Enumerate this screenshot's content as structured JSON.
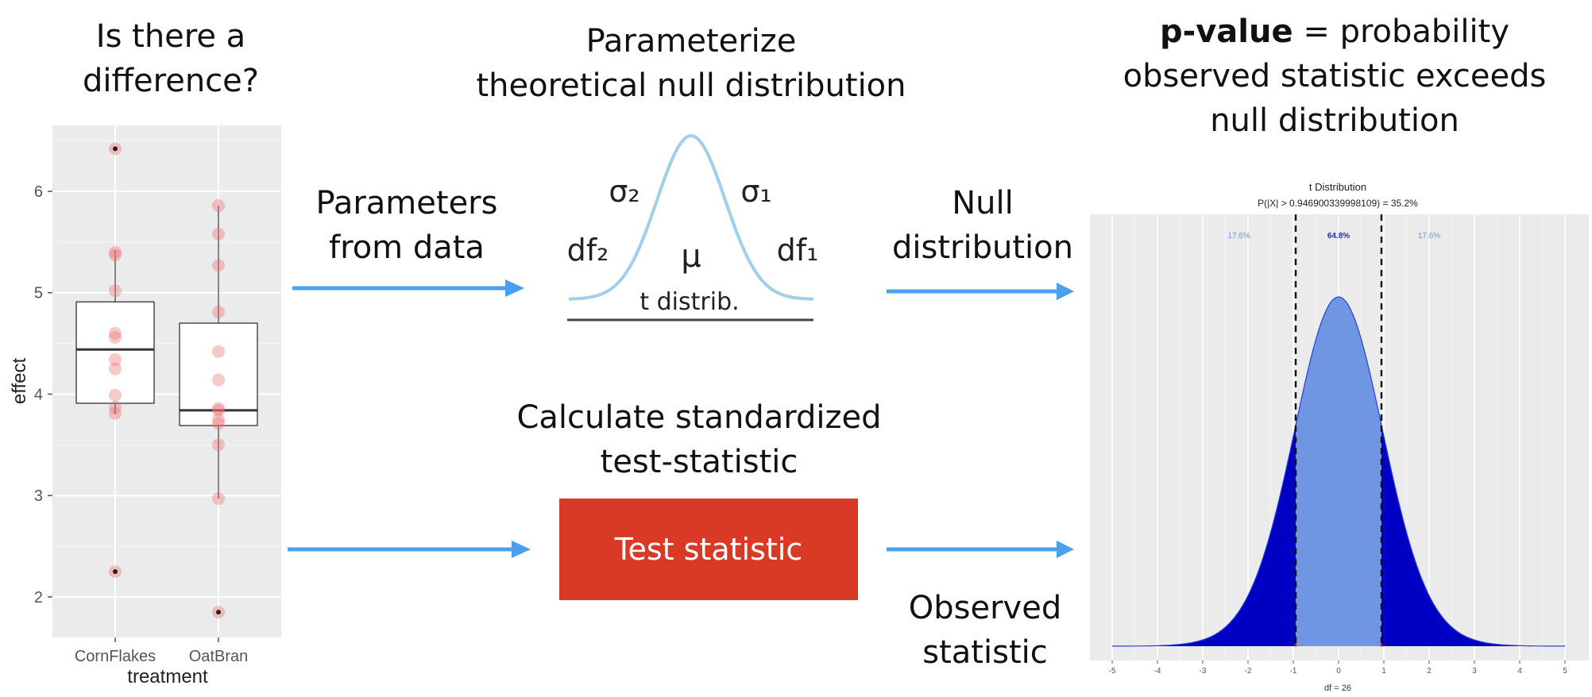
{
  "headings": {
    "left": [
      "Is there a",
      "difference?"
    ],
    "middle": [
      "Parameterize",
      "theoretical null distribution"
    ],
    "right_bold": "p-value",
    "right_rest": " = probability",
    "right_lines": [
      "observed statistic exceeds",
      "null distribution"
    ],
    "calc": [
      "Calculate standardized",
      "test-statistic"
    ]
  },
  "labels": {
    "params": [
      "Parameters",
      "from data"
    ],
    "null": [
      "Null",
      "distribution"
    ],
    "observed": [
      "Observed",
      "statistic"
    ],
    "test_statistic": "Test statistic"
  },
  "tdist_icon": {
    "sigma2": "σ₂",
    "sigma1": "σ₁",
    "df2": "df₂",
    "df1": "df₁",
    "mu": "μ",
    "caption": "t distrib."
  },
  "colors": {
    "arrow": "#4aa0ec",
    "test_box": "#d83a26",
    "icon_curve": "#9fcfea",
    "dist_center": "#6f95e3",
    "dist_tails": "#0000c4"
  },
  "chart_data": [
    {
      "type": "scatter",
      "subtype": "boxplot_with_points",
      "xlabel": "treatment",
      "ylabel": "effect",
      "categories": [
        "CornFlakes",
        "OatBran"
      ],
      "ylim": [
        1.6,
        6.65
      ],
      "yticks": [
        "2",
        "3",
        "4",
        "5",
        "6"
      ],
      "boxes": [
        {
          "name": "CornFlakes",
          "min": 3.8,
          "q1": 3.91,
          "median": 4.44,
          "q3": 4.91,
          "max": 5.42
        },
        {
          "name": "OatBran",
          "min": 2.97,
          "q1": 3.69,
          "median": 3.84,
          "q3": 4.7,
          "max": 5.86
        }
      ],
      "points": {
        "CornFlakes": [
          6.42,
          5.4,
          5.37,
          5.02,
          4.6,
          4.56,
          4.34,
          4.25,
          3.99,
          3.87,
          3.81,
          2.25
        ],
        "OatBran": [
          5.86,
          5.58,
          5.27,
          4.81,
          4.42,
          4.14,
          3.86,
          3.84,
          3.75,
          3.71,
          3.5,
          2.97,
          1.85
        ]
      },
      "outliers": {
        "CornFlakes": [
          6.42,
          2.25
        ],
        "OatBran": [
          1.85
        ]
      },
      "grid": true
    },
    {
      "type": "area",
      "title": "t Distribution",
      "subtitle": "P(|X| > 0.946900339998109) = 35.2%",
      "xlabel": "df = 26",
      "df": 26,
      "critical": 0.946900339998109,
      "xlim": [
        -5,
        5
      ],
      "xticks": [
        "-5",
        "-4",
        "-3",
        "-2",
        "-1",
        "0",
        "1",
        "2",
        "3",
        "4",
        "5"
      ],
      "region_labels": [
        "17.6%",
        "64.8%",
        "17.6%"
      ],
      "grid": true
    }
  ]
}
